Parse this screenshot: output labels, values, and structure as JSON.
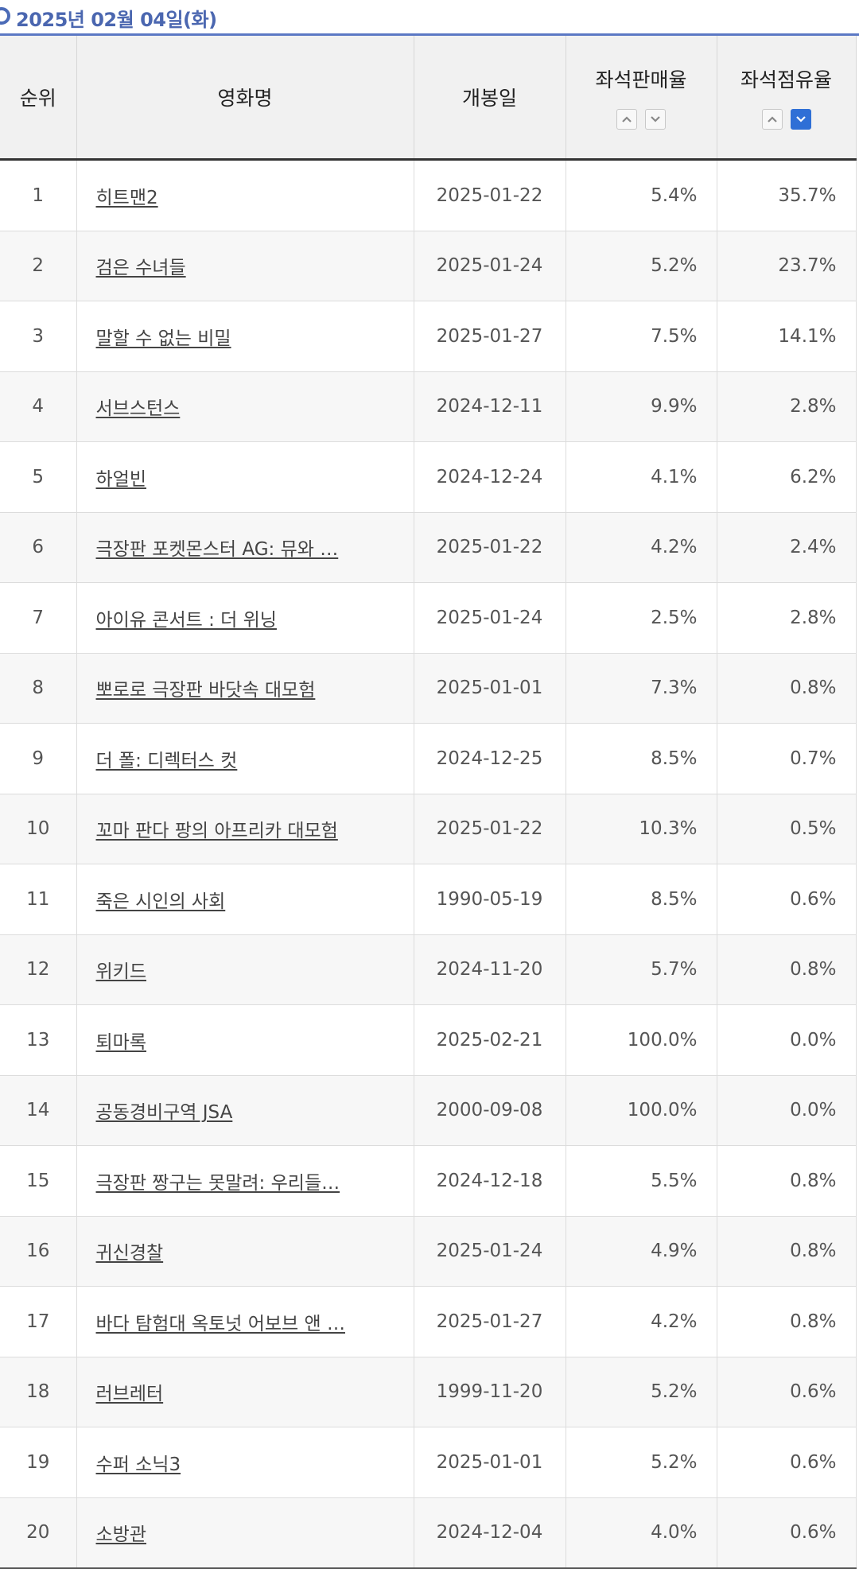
{
  "date_header": "2025년 02월 04일(화)",
  "columns": {
    "rank": "순위",
    "title": "영화명",
    "open_date": "개봉일",
    "seat_sales": "좌석판매율",
    "seat_share": "좌석점유율"
  },
  "sort": {
    "up_icon": "chevron-up-icon",
    "down_icon": "chevron-down-icon",
    "active_column": "seat_share",
    "active_direction": "down",
    "active_color": "#2f6fd6"
  },
  "rows": [
    {
      "rank": "1",
      "title": "히트맨2",
      "open": "2025-01-22",
      "sales": "5.4%",
      "share": "35.7%"
    },
    {
      "rank": "2",
      "title": "검은 수녀들",
      "open": "2025-01-24",
      "sales": "5.2%",
      "share": "23.7%"
    },
    {
      "rank": "3",
      "title": "말할 수 없는 비밀",
      "open": "2025-01-27",
      "sales": "7.5%",
      "share": "14.1%"
    },
    {
      "rank": "4",
      "title": "서브스턴스",
      "open": "2024-12-11",
      "sales": "9.9%",
      "share": "2.8%"
    },
    {
      "rank": "5",
      "title": "하얼빈",
      "open": "2024-12-24",
      "sales": "4.1%",
      "share": "6.2%"
    },
    {
      "rank": "6",
      "title": "극장판 포켓몬스터 AG: 뮤와 …",
      "open": "2025-01-22",
      "sales": "4.2%",
      "share": "2.4%"
    },
    {
      "rank": "7",
      "title": "아이유 콘서트 : 더 위닝",
      "open": "2025-01-24",
      "sales": "2.5%",
      "share": "2.8%"
    },
    {
      "rank": "8",
      "title": "뽀로로 극장판 바닷속 대모험",
      "open": "2025-01-01",
      "sales": "7.3%",
      "share": "0.8%"
    },
    {
      "rank": "9",
      "title": "더 폴: 디렉터스 컷",
      "open": "2024-12-25",
      "sales": "8.5%",
      "share": "0.7%"
    },
    {
      "rank": "10",
      "title": "꼬마 판다 팡의 아프리카 대모험",
      "open": "2025-01-22",
      "sales": "10.3%",
      "share": "0.5%"
    },
    {
      "rank": "11",
      "title": "죽은 시인의 사회",
      "open": "1990-05-19",
      "sales": "8.5%",
      "share": "0.6%"
    },
    {
      "rank": "12",
      "title": "위키드",
      "open": "2024-11-20",
      "sales": "5.7%",
      "share": "0.8%"
    },
    {
      "rank": "13",
      "title": "퇴마록",
      "open": "2025-02-21",
      "sales": "100.0%",
      "share": "0.0%"
    },
    {
      "rank": "14",
      "title": "공동경비구역 JSA",
      "open": "2000-09-08",
      "sales": "100.0%",
      "share": "0.0%"
    },
    {
      "rank": "15",
      "title": "극장판 짱구는 못말려: 우리들…",
      "open": "2024-12-18",
      "sales": "5.5%",
      "share": "0.8%"
    },
    {
      "rank": "16",
      "title": "귀신경찰",
      "open": "2025-01-24",
      "sales": "4.9%",
      "share": "0.8%"
    },
    {
      "rank": "17",
      "title": "바다 탐험대 옥토넛 어보브 앤 …",
      "open": "2025-01-27",
      "sales": "4.2%",
      "share": "0.8%"
    },
    {
      "rank": "18",
      "title": "러브레터",
      "open": "1999-11-20",
      "sales": "5.2%",
      "share": "0.6%"
    },
    {
      "rank": "19",
      "title": "수퍼 소닉3",
      "open": "2025-01-01",
      "sales": "5.2%",
      "share": "0.6%"
    },
    {
      "rank": "20",
      "title": "소방관",
      "open": "2024-12-04",
      "sales": "4.0%",
      "share": "0.6%"
    }
  ]
}
